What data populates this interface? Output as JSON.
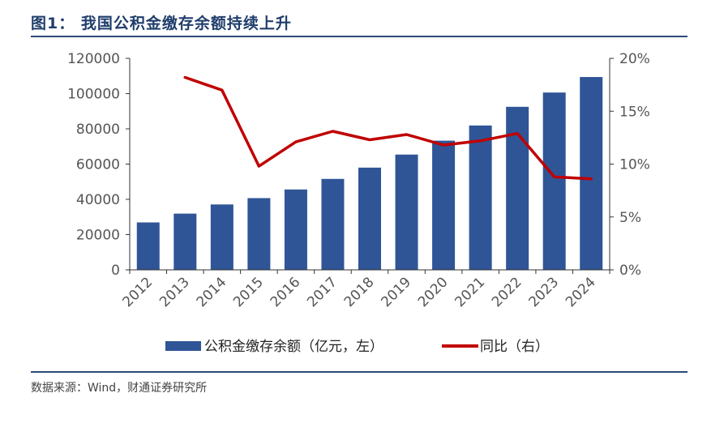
{
  "header": {
    "title": "图1：  我国公积金缴存余额持续上升"
  },
  "footer": {
    "source": "数据来源：Wind，财通证券研究所"
  },
  "colors": {
    "bar": "#2f5597",
    "line": "#c00000",
    "rule": "#2a4a78"
  },
  "chart_data": {
    "type": "bar",
    "title": "我国公积金缴存余额持续上升",
    "categories": [
      "2012",
      "2013",
      "2014",
      "2015",
      "2016",
      "2017",
      "2018",
      "2019",
      "2020",
      "2021",
      "2022",
      "2023",
      "2024"
    ],
    "series": [
      {
        "name": "公积金缴存余额（亿元，左）",
        "type": "bar",
        "axis": "left",
        "values": [
          26900,
          31900,
          37100,
          40700,
          45600,
          51600,
          58000,
          65400,
          73300,
          81900,
          92500,
          100600,
          109400
        ]
      },
      {
        "name": "同比（右）",
        "type": "line",
        "axis": "right",
        "values": [
          null,
          18.2,
          17.0,
          9.8,
          12.1,
          13.1,
          12.3,
          12.8,
          11.8,
          12.2,
          12.9,
          8.8,
          8.6
        ]
      }
    ],
    "y_left": {
      "min": 0,
      "max": 120000,
      "ticks": [
        0,
        20000,
        40000,
        60000,
        80000,
        100000,
        120000
      ]
    },
    "y_right": {
      "min": 0,
      "max": 20,
      "ticks": [
        "0%",
        "5%",
        "10%",
        "15%",
        "20%"
      ]
    },
    "legend": "bottom",
    "grid": false
  }
}
